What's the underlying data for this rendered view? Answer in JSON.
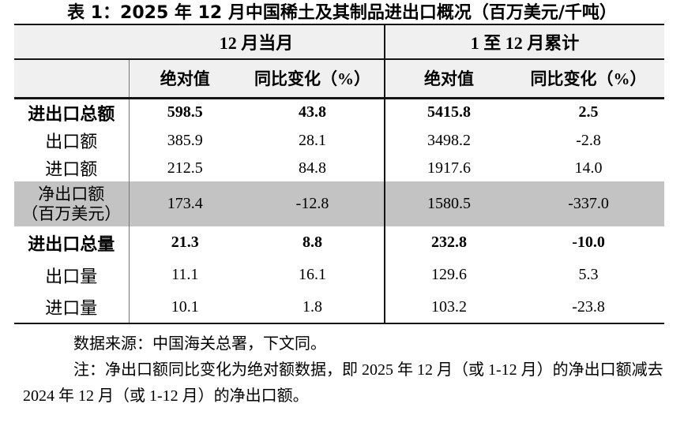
{
  "title": "表 1：2025 年 12 月中国稀土及其制品进出口概况（百万美元/千吨）",
  "table": {
    "column_groups": [
      "12 月当月",
      "1 至 12 月累计"
    ],
    "sub_headers": [
      "绝对值",
      "同比变化（%）",
      "绝对值",
      "同比变化（%）"
    ],
    "rows": [
      {
        "label": "进出口总额",
        "values": [
          "598.5",
          "43.8",
          "5415.8",
          "2.5"
        ],
        "bold": true
      },
      {
        "label": "出口额",
        "values": [
          "385.9",
          "28.1",
          "3498.2",
          "-2.8"
        ],
        "bold": false
      },
      {
        "label": "进口额",
        "values": [
          "212.5",
          "84.8",
          "1917.6",
          "14.0"
        ],
        "bold": false
      },
      {
        "label": "净出口额",
        "label2": "（百万美元）",
        "values": [
          "173.4",
          "-12.8",
          "1580.5",
          "-337.0"
        ],
        "bold": false,
        "highlight": true
      },
      {
        "label": "进出口总量",
        "values": [
          "21.3",
          "8.8",
          "232.8",
          "-10.0"
        ],
        "bold": true
      },
      {
        "label": "出口量",
        "values": [
          "11.1",
          "16.1",
          "129.6",
          "5.3"
        ],
        "bold": false
      },
      {
        "label": "进口量",
        "values": [
          "10.1",
          "1.8",
          "103.2",
          "-23.8"
        ],
        "bold": false
      }
    ]
  },
  "footer": {
    "source": "数据来源：中国海关总署，下文同。",
    "note": "注：净出口额同比变化为绝对额数据，即 2025 年 12 月（或 1-12 月）的净出口额减去 2024 年 12 月（或 1-12 月）的净出口额。"
  },
  "colors": {
    "header_background": "#f0f0f0",
    "highlight_row_background": "#c3c3c3",
    "border": "#151515",
    "label_divider": "#767676",
    "text": "#000000"
  }
}
